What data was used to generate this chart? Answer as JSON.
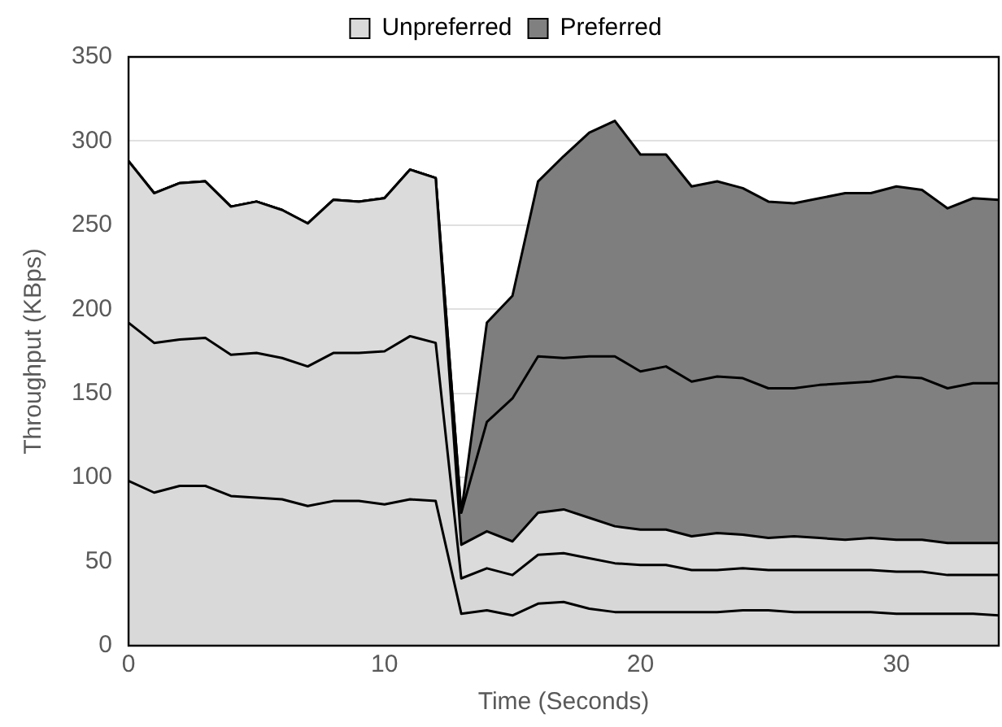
{
  "chart_data": {
    "type": "area",
    "stacked": true,
    "xlabel": "Time (Seconds)",
    "ylabel": "Throughput (KBps)",
    "x": [
      0,
      1,
      2,
      3,
      4,
      5,
      6,
      7,
      8,
      9,
      10,
      11,
      12,
      13,
      14,
      15,
      16,
      17,
      18,
      19,
      20,
      21,
      22,
      23,
      24,
      25,
      26,
      27,
      28,
      29,
      30,
      31,
      32,
      33,
      34
    ],
    "series": [
      {
        "name": "Unpreferred",
        "color": "#d9d9d9",
        "values": [
          98,
          91,
          95,
          95,
          89,
          88,
          87,
          83,
          86,
          86,
          84,
          87,
          86,
          19,
          21,
          18,
          25,
          26,
          22,
          20,
          20,
          20,
          20,
          20,
          21,
          21,
          20,
          20,
          20,
          20,
          19,
          19,
          19,
          19,
          18
        ]
      },
      {
        "color": "#d7d7d7",
        "values": [
          94,
          89,
          87,
          88,
          84,
          86,
          84,
          83,
          88,
          88,
          91,
          97,
          94,
          21,
          25,
          24,
          29,
          29,
          30,
          29,
          28,
          28,
          25,
          25,
          25,
          24,
          25,
          25,
          25,
          25,
          25,
          25,
          23,
          23,
          24
        ]
      },
      {
        "color": "#dbdbdb",
        "values": [
          96,
          89,
          93,
          93,
          88,
          90,
          88,
          85,
          91,
          90,
          91,
          99,
          98,
          20,
          22,
          20,
          25,
          26,
          24,
          22,
          21,
          21,
          20,
          22,
          20,
          19,
          20,
          19,
          18,
          19,
          19,
          19,
          19,
          19,
          19
        ]
      },
      {
        "name": "Preferred",
        "color": "#808080",
        "values": [
          0,
          0,
          0,
          0,
          0,
          0,
          0,
          0,
          0,
          0,
          0,
          0,
          0,
          19,
          65,
          85,
          93,
          90,
          96,
          101,
          94,
          97,
          92,
          93,
          93,
          89,
          88,
          91,
          93,
          93,
          97,
          96,
          92,
          95,
          95
        ]
      },
      {
        "color": "#7e7e7e",
        "values": [
          0,
          0,
          0,
          0,
          0,
          0,
          0,
          0,
          0,
          0,
          0,
          0,
          0,
          0,
          59,
          61,
          104,
          120,
          133,
          140,
          129,
          126,
          116,
          116,
          113,
          111,
          110,
          111,
          113,
          112,
          113,
          112,
          107,
          110,
          109
        ]
      }
    ],
    "xlim": [
      0,
      34
    ],
    "xticks": [
      0,
      10,
      20,
      30
    ],
    "ylim": [
      0,
      350
    ],
    "yticks": [
      0,
      50,
      100,
      150,
      200,
      250,
      300,
      350
    ],
    "grid": "y",
    "legend": "top"
  }
}
